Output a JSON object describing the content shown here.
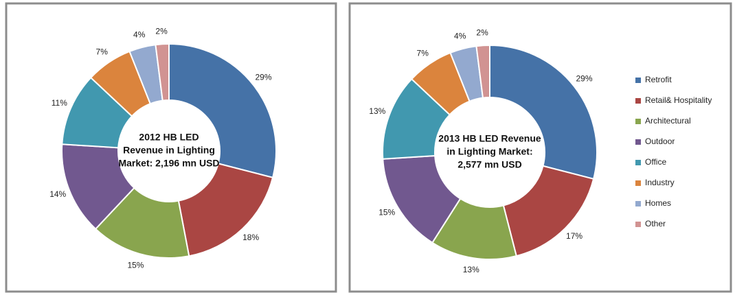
{
  "chart_data": [
    {
      "type": "donut",
      "title": [
        "2012 HB LED",
        "Revenue in Lighting",
        "Market: 2,196 mn USD"
      ],
      "categories": [
        "Retrofit",
        "Retail& Hospitality",
        "Architectural",
        "Outdoor",
        "Office",
        "Industry",
        "Homes",
        "Other"
      ],
      "values": [
        29,
        18,
        15,
        14,
        11,
        7,
        4,
        2
      ],
      "value_labels": [
        "29%",
        "18%",
        "15%",
        "14%",
        "11%",
        "7%",
        "4%",
        "2%"
      ],
      "colors": [
        "#4572a7",
        "#aa4643",
        "#89a54e",
        "#71588f",
        "#4198af",
        "#db843d",
        "#93a9cf",
        "#d19392"
      ]
    },
    {
      "type": "donut",
      "title": [
        "2013 HB LED Revenue",
        "in Lighting Market:",
        "2,577 mn USD"
      ],
      "categories": [
        "Retrofit",
        "Retail& Hospitality",
        "Architectural",
        "Outdoor",
        "Office",
        "Industry",
        "Homes",
        "Other"
      ],
      "values": [
        29,
        17,
        13,
        15,
        13,
        7,
        4,
        2
      ],
      "value_labels": [
        "29%",
        "17%",
        "13%",
        "15%",
        "13%",
        "7%",
        "4%",
        "2%"
      ],
      "colors": [
        "#4572a7",
        "#aa4643",
        "#89a54e",
        "#71588f",
        "#4198af",
        "#db843d",
        "#93a9cf",
        "#d19392"
      ],
      "legend": "right"
    }
  ]
}
